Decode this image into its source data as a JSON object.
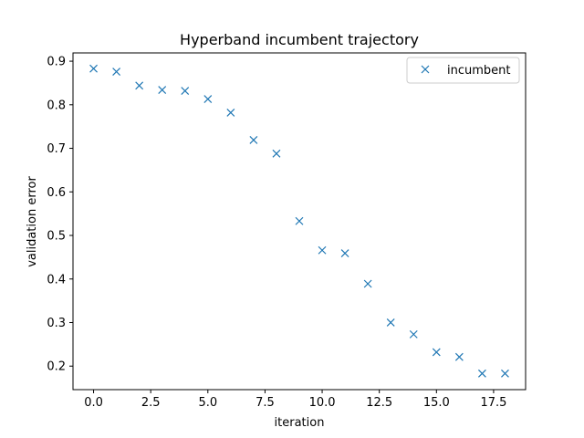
{
  "chart_data": {
    "type": "scatter",
    "title": "Hyperband incumbent trajectory",
    "xlabel": "iteration",
    "ylabel": "validation error",
    "xlim": [
      -0.9,
      18.9
    ],
    "ylim": [
      0.146,
      0.919
    ],
    "xticks": [
      0.0,
      2.5,
      5.0,
      7.5,
      10.0,
      12.5,
      15.0,
      17.5
    ],
    "xtick_labels": [
      "0.0",
      "2.5",
      "5.0",
      "7.5",
      "10.0",
      "12.5",
      "15.0",
      "17.5"
    ],
    "yticks": [
      0.2,
      0.3,
      0.4,
      0.5,
      0.6,
      0.7,
      0.8,
      0.9
    ],
    "ytick_labels": [
      "0.2",
      "0.3",
      "0.4",
      "0.5",
      "0.6",
      "0.7",
      "0.8",
      "0.9"
    ],
    "grid": false,
    "legend_position": "top-right",
    "marker": "x",
    "series": [
      {
        "name": "incumbent",
        "color": "#1f77b4",
        "x": [
          0,
          1,
          2,
          3,
          4,
          5,
          6,
          7,
          8,
          9,
          10,
          11,
          12,
          13,
          14,
          15,
          16,
          17,
          18
        ],
        "y": [
          0.883,
          0.876,
          0.844,
          0.834,
          0.832,
          0.813,
          0.782,
          0.719,
          0.688,
          0.533,
          0.466,
          0.459,
          0.389,
          0.3,
          0.273,
          0.232,
          0.221,
          0.183,
          0.183
        ]
      }
    ]
  }
}
